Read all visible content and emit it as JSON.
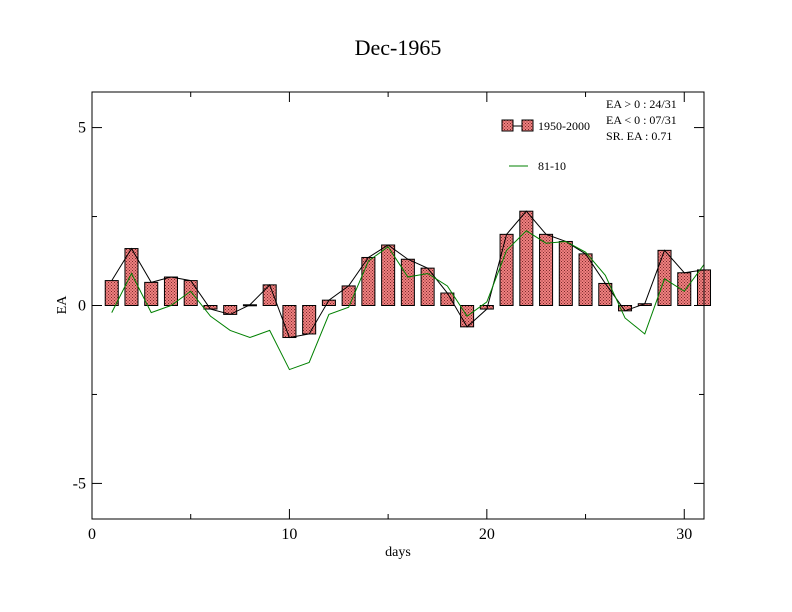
{
  "chart_data": {
    "type": "bar",
    "title": "Dec-1965",
    "xlabel": "days",
    "ylabel": "EA",
    "xlim": [
      0,
      31
    ],
    "ylim": [
      -6,
      6
    ],
    "x_ticks": [
      0,
      10,
      20,
      30
    ],
    "y_ticks": [
      -5,
      0,
      5
    ],
    "grid": false,
    "legend_position": "top-right",
    "series": [
      {
        "name": "1950-2000",
        "kind": "bar-with-line",
        "fill_color": "#f08080",
        "line_color": "#000000",
        "x": [
          1,
          2,
          3,
          4,
          5,
          6,
          7,
          8,
          9,
          10,
          11,
          12,
          13,
          14,
          15,
          16,
          17,
          18,
          19,
          20,
          21,
          22,
          23,
          24,
          25,
          26,
          27,
          28,
          29,
          30,
          31
        ],
        "values": [
          0.7,
          1.6,
          0.65,
          0.8,
          0.7,
          -0.1,
          -0.25,
          0.02,
          0.58,
          -0.9,
          -0.8,
          0.15,
          0.55,
          1.35,
          1.7,
          1.3,
          1.05,
          0.35,
          -0.6,
          -0.1,
          2.0,
          2.65,
          2.0,
          1.8,
          1.45,
          0.62,
          -0.15,
          0.05,
          1.55,
          0.92,
          1.0
        ],
        "stats": [
          "EA > 0 : 24/31",
          "EA < 0 : 07/31",
          "SR. EA :  0.71"
        ]
      },
      {
        "name": "81-10",
        "kind": "line",
        "line_color": "#008000",
        "x": [
          1,
          2,
          3,
          4,
          5,
          6,
          7,
          8,
          9,
          10,
          11,
          12,
          13,
          14,
          15,
          16,
          17,
          18,
          19,
          20,
          21,
          22,
          23,
          24,
          25,
          26,
          27,
          28,
          29,
          30,
          31
        ],
        "values": [
          -0.2,
          0.9,
          -0.2,
          0.0,
          0.4,
          -0.3,
          -0.7,
          -0.9,
          -0.7,
          -1.8,
          -1.6,
          -0.25,
          -0.05,
          1.25,
          1.65,
          0.8,
          0.9,
          0.55,
          -0.3,
          0.1,
          1.55,
          2.1,
          1.75,
          1.8,
          1.5,
          0.85,
          -0.35,
          -0.8,
          0.75,
          0.4,
          1.15
        ]
      }
    ]
  }
}
